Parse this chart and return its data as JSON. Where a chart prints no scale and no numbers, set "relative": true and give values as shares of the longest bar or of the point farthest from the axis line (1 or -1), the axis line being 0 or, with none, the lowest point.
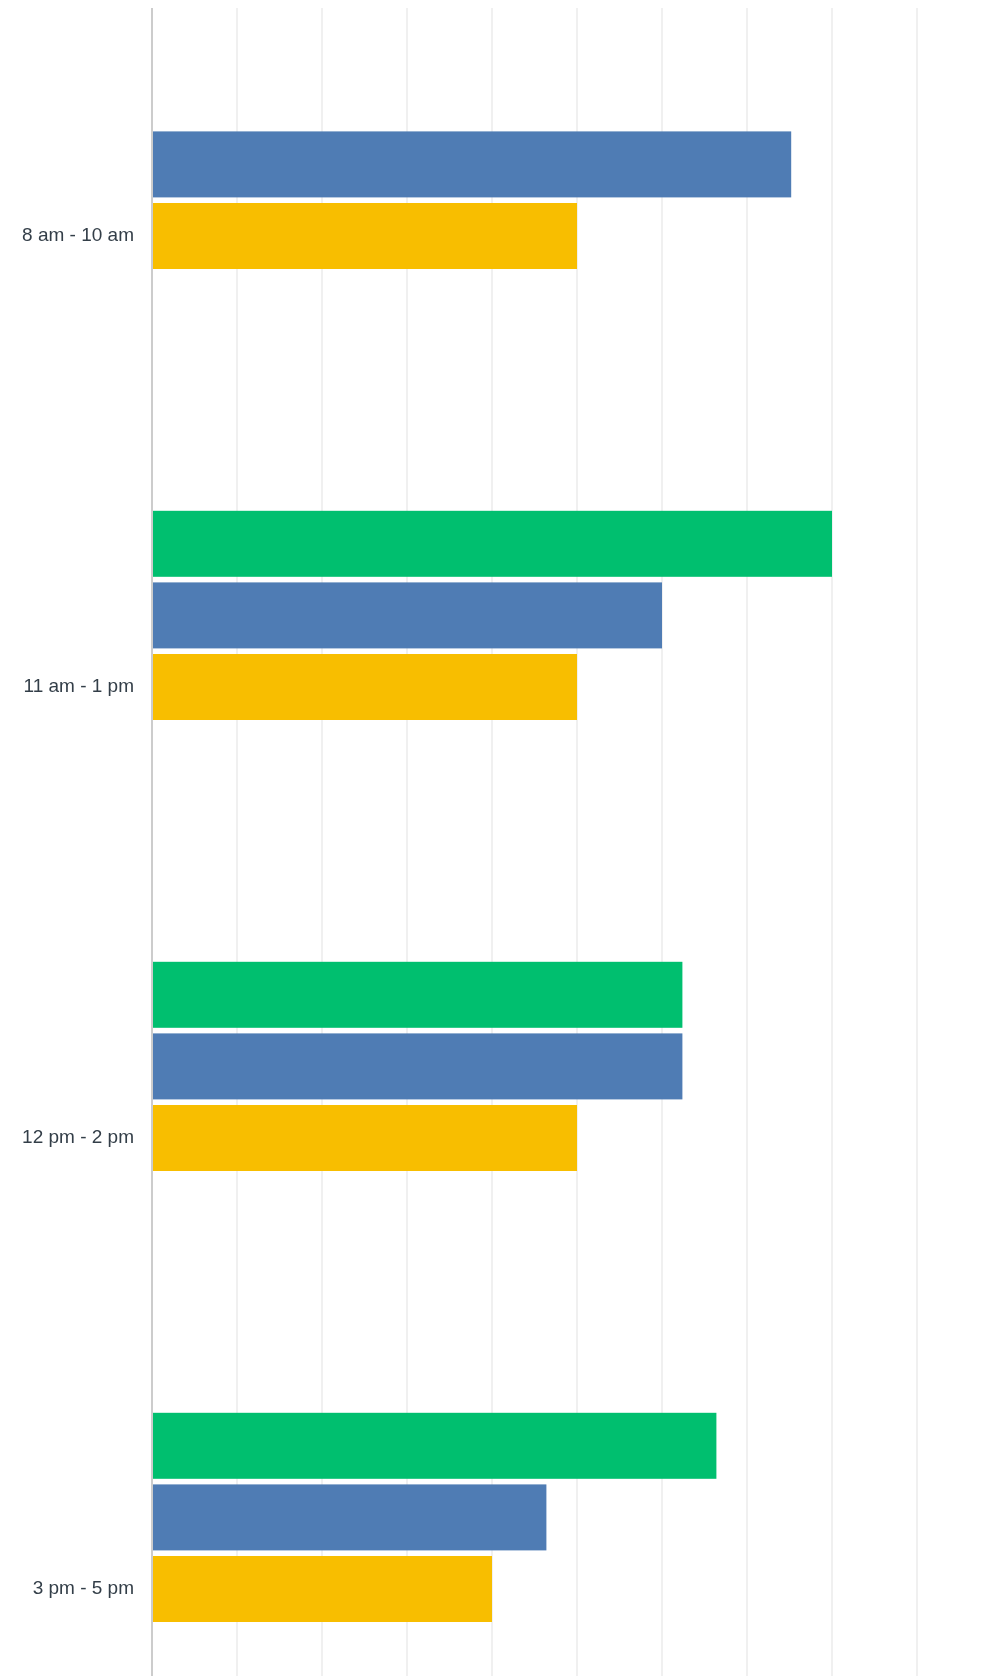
{
  "chart_data": {
    "type": "bar",
    "orientation": "horizontal",
    "relative": true,
    "grid": "x",
    "categories": [
      "8 am - 10 am",
      "11 am - 1 pm",
      "12 pm - 2 pm",
      "3 pm - 5 pm"
    ],
    "series": [
      {
        "color": "#00bf6f",
        "values": [
          null,
          1,
          0.78,
          0.83
        ]
      },
      {
        "color": "#4f7cb4",
        "values": [
          0.94,
          0.75,
          0.78,
          0.58
        ]
      },
      {
        "color": "#f8be00",
        "values": [
          0.625,
          0.625,
          0.625,
          0.5
        ]
      }
    ]
  }
}
